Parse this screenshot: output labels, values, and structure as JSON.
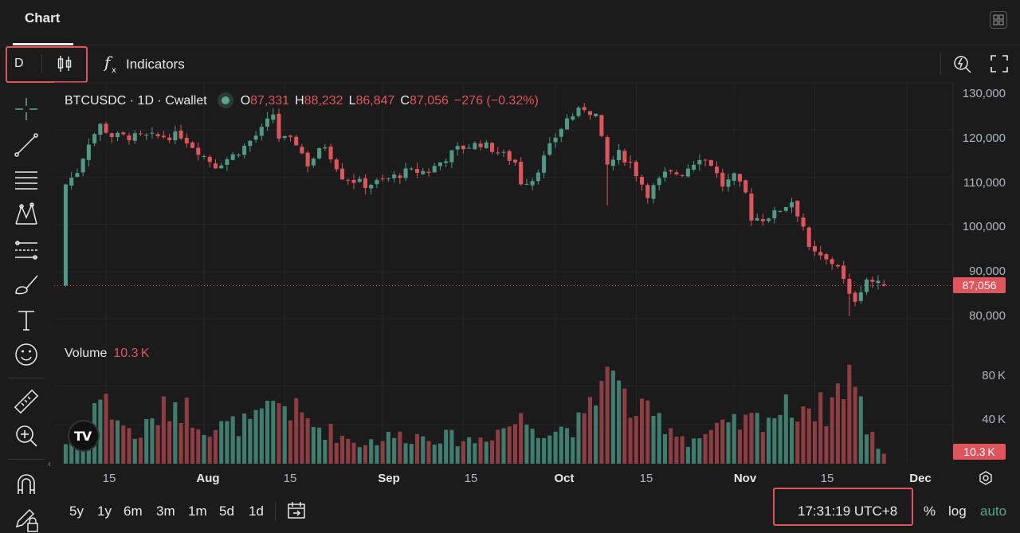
{
  "tab": {
    "label": "Chart"
  },
  "toolbar": {
    "interval": "D",
    "indicators_label": "Indicators"
  },
  "left_tools": [
    "crosshair-icon",
    "trend-line-icon",
    "horizontal-lines-icon",
    "pattern-icon",
    "fib-icon",
    "brush-icon",
    "text-icon",
    "emoji-icon",
    "ruler-icon",
    "zoom-in-icon",
    "magnet-icon",
    "lock-pencil-icon"
  ],
  "legend": {
    "symbol": "BTCUSDC · 1D · Cwallet",
    "o_label": "O",
    "o": "87,331",
    "h_label": "H",
    "h": "88,232",
    "l_label": "L",
    "l": "86,847",
    "c_label": "C",
    "c": "87,056",
    "change": "−276 (−0.32%)"
  },
  "volume_legend": {
    "label": "Volume",
    "value": "10.3 K"
  },
  "price_tag": "87,056",
  "volume_tag": "10.3 K",
  "price_axis": [
    "130,000",
    "120,000",
    "110,000",
    "100,000",
    "90,000",
    "80,000"
  ],
  "volume_axis": [
    "80 K",
    "40 K"
  ],
  "time_axis": [
    {
      "label": "15",
      "month": false
    },
    {
      "label": "Aug",
      "month": true
    },
    {
      "label": "15",
      "month": false
    },
    {
      "label": "Sep",
      "month": true
    },
    {
      "label": "15",
      "month": false
    },
    {
      "label": "Oct",
      "month": true
    },
    {
      "label": "15",
      "month": false
    },
    {
      "label": "Nov",
      "month": true
    },
    {
      "label": "15",
      "month": false
    },
    {
      "label": "Dec",
      "month": true
    }
  ],
  "ranges": [
    "5y",
    "1y",
    "6m",
    "3m",
    "1m",
    "5d",
    "1d"
  ],
  "clock": "17:31:19 UTC+8",
  "bottom_right": {
    "percent": "%",
    "log": "log",
    "auto": "auto"
  },
  "chart_data": {
    "type": "candlestick",
    "symbol": "BTCUSDC",
    "interval": "1D",
    "x_range": [
      "2025-07-08",
      "2025-11-27"
    ],
    "price_ylim": [
      76000,
      130000
    ],
    "volume_ylim": [
      0,
      110000
    ],
    "last_price": 87056,
    "colors": {
      "up": "#4e9a84",
      "down": "#e0545b",
      "up_volume": "#3f7e6d",
      "down_volume": "#8e3d42"
    },
    "x_ticks": [
      "Jul 15",
      "Aug 1",
      "Aug 15",
      "Sep 1",
      "Sep 15",
      "Oct 1",
      "Oct 15",
      "Nov 1",
      "Nov 15",
      "Dec 1"
    ],
    "close_path": [
      [
        "2025-07-08",
        108500
      ],
      [
        "2025-07-10",
        111300
      ],
      [
        "2025-07-12",
        117500
      ],
      [
        "2025-07-14",
        121000
      ],
      [
        "2025-07-16",
        118800
      ],
      [
        "2025-07-20",
        118500
      ],
      [
        "2025-07-24",
        118600
      ],
      [
        "2025-07-28",
        118900
      ],
      [
        "2025-08-01",
        114500
      ],
      [
        "2025-08-03",
        112500
      ],
      [
        "2025-08-06",
        114600
      ],
      [
        "2025-08-08",
        116500
      ],
      [
        "2025-08-11",
        120000
      ],
      [
        "2025-08-13",
        123400
      ],
      [
        "2025-08-14",
        118400
      ],
      [
        "2025-08-17",
        117300
      ],
      [
        "2025-08-19",
        112800
      ],
      [
        "2025-08-22",
        116800
      ],
      [
        "2025-08-25",
        110200
      ],
      [
        "2025-08-29",
        108400
      ],
      [
        "2025-09-01",
        109200
      ],
      [
        "2025-09-05",
        111100
      ],
      [
        "2025-09-09",
        111300
      ],
      [
        "2025-09-14",
        116000
      ],
      [
        "2025-09-18",
        117200
      ],
      [
        "2025-09-21",
        115400
      ],
      [
        "2025-09-24",
        113200
      ],
      [
        "2025-09-25",
        109000
      ],
      [
        "2025-09-27",
        109600
      ],
      [
        "2025-10-01",
        118600
      ],
      [
        "2025-10-03",
        122300
      ],
      [
        "2025-10-06",
        124700
      ],
      [
        "2025-10-08",
        123200
      ],
      [
        "2025-10-10",
        112500
      ],
      [
        "2025-10-12",
        115000
      ],
      [
        "2025-10-14",
        113000
      ],
      [
        "2025-10-17",
        106500
      ],
      [
        "2025-10-20",
        110600
      ],
      [
        "2025-10-23",
        111000
      ],
      [
        "2025-10-26",
        114400
      ],
      [
        "2025-10-28",
        112900
      ],
      [
        "2025-10-30",
        108300
      ],
      [
        "2025-11-01",
        110000
      ],
      [
        "2025-11-03",
        106500
      ],
      [
        "2025-11-04",
        101500
      ],
      [
        "2025-11-06",
        101300
      ],
      [
        "2025-11-08",
        102300
      ],
      [
        "2025-11-11",
        105000
      ],
      [
        "2025-11-13",
        99700
      ],
      [
        "2025-11-14",
        94500
      ],
      [
        "2025-11-17",
        92300
      ],
      [
        "2025-11-19",
        91500
      ],
      [
        "2025-11-21",
        84700
      ],
      [
        "2025-11-22",
        84200
      ],
      [
        "2025-11-24",
        88500
      ],
      [
        "2025-11-26",
        87300
      ],
      [
        "2025-11-27",
        87056
      ]
    ],
    "volume_path": [
      [
        "2025-07-08",
        22000
      ],
      [
        "2025-07-14",
        72000
      ],
      [
        "2025-07-20",
        28000
      ],
      [
        "2025-07-27",
        68000
      ],
      [
        "2025-08-02",
        38000
      ],
      [
        "2025-08-10",
        45000
      ],
      [
        "2025-08-14",
        68000
      ],
      [
        "2025-08-20",
        42000
      ],
      [
        "2025-08-28",
        22000
      ],
      [
        "2025-09-03",
        30000
      ],
      [
        "2025-09-10",
        30000
      ],
      [
        "2025-09-17",
        25000
      ],
      [
        "2025-09-25",
        48000
      ],
      [
        "2025-09-30",
        35000
      ],
      [
        "2025-10-06",
        45000
      ],
      [
        "2025-10-10",
        100000
      ],
      [
        "2025-10-14",
        60000
      ],
      [
        "2025-10-20",
        45000
      ],
      [
        "2025-10-24",
        25000
      ],
      [
        "2025-10-30",
        38000
      ],
      [
        "2025-11-05",
        48000
      ],
      [
        "2025-11-13",
        65000
      ],
      [
        "2025-11-17",
        58000
      ],
      [
        "2025-11-21",
        102000
      ],
      [
        "2025-11-24",
        40000
      ],
      [
        "2025-11-27",
        10300
      ]
    ]
  }
}
